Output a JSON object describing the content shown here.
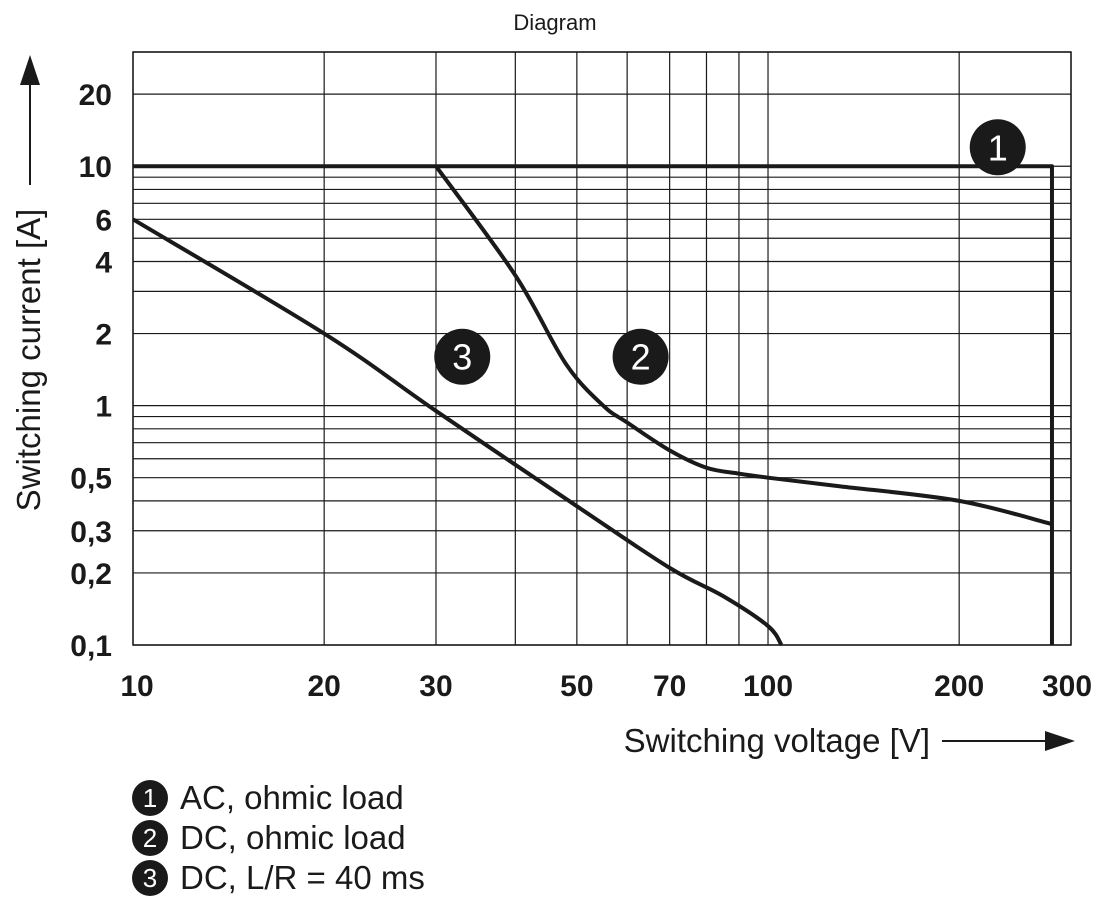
{
  "chart_data": {
    "type": "line",
    "title": "Diagram",
    "xlabel": "Switching voltage [V]",
    "ylabel": "Switching current [A]",
    "x_scale": "log",
    "y_scale": "log",
    "xlim": [
      10,
      300
    ],
    "ylim": [
      0.1,
      30
    ],
    "x_ticks": [
      10,
      20,
      30,
      50,
      70,
      100,
      200,
      300
    ],
    "x_tick_labels": [
      "10",
      "20",
      "30",
      "50",
      "70",
      "100",
      "200",
      "300"
    ],
    "y_ticks": [
      0.1,
      0.2,
      0.3,
      0.5,
      1,
      2,
      4,
      6,
      10,
      20
    ],
    "y_tick_labels": [
      "0,1",
      "0,2",
      "0,3",
      "0,5",
      "1",
      "2",
      "4",
      "6",
      "10",
      "20"
    ],
    "grid": true,
    "series": [
      {
        "id": "1",
        "name": "AC, ohmic load",
        "points": [
          [
            10,
            10
          ],
          [
            30,
            10
          ],
          [
            280,
            10
          ],
          [
            280,
            0.1
          ]
        ]
      },
      {
        "id": "2",
        "name": "DC, ohmic load",
        "points": [
          [
            30,
            10
          ],
          [
            40,
            3.5
          ],
          [
            48,
            1.5
          ],
          [
            55,
            1.0
          ],
          [
            60,
            0.85
          ],
          [
            70,
            0.65
          ],
          [
            80,
            0.55
          ],
          [
            90,
            0.52
          ],
          [
            100,
            0.5
          ],
          [
            130,
            0.46
          ],
          [
            200,
            0.4
          ],
          [
            280,
            0.32
          ]
        ]
      },
      {
        "id": "3",
        "name": "DC, L/R = 40 ms",
        "points": [
          [
            10,
            6
          ],
          [
            20,
            2
          ],
          [
            30,
            0.95
          ],
          [
            50,
            0.38
          ],
          [
            70,
            0.21
          ],
          [
            85,
            0.16
          ],
          [
            100,
            0.12
          ],
          [
            105,
            0.1
          ]
        ]
      }
    ],
    "legend_position": "below"
  }
}
